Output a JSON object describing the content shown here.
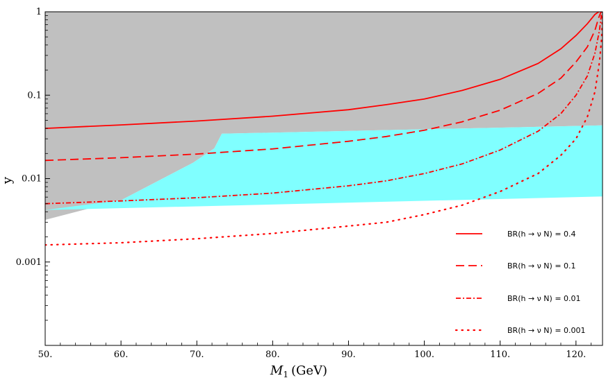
{
  "chart_data": {
    "type": "line",
    "title": "",
    "xlabel_symbol": "M",
    "xlabel_subscript": "1",
    "xlabel_unit": "(GeV)",
    "ylabel": "y",
    "xlim": [
      50,
      123.5
    ],
    "ylim": [
      0.0001,
      1
    ],
    "y_scale": "log",
    "grid": false,
    "legend_position": "bottom-right",
    "x_ticks": [
      {
        "value": 50,
        "label": "50."
      },
      {
        "value": 60,
        "label": "60."
      },
      {
        "value": 70,
        "label": "70."
      },
      {
        "value": 80,
        "label": "80."
      },
      {
        "value": 90,
        "label": "90."
      },
      {
        "value": 100,
        "label": "100."
      },
      {
        "value": 110,
        "label": "110."
      },
      {
        "value": 120,
        "label": "120."
      }
    ],
    "y_ticks": [
      {
        "value": 1,
        "label": "1"
      },
      {
        "value": 0.1,
        "label": "0.1"
      },
      {
        "value": 0.01,
        "label": "0.01"
      },
      {
        "value": 0.001,
        "label": "0.001"
      }
    ],
    "regions": [
      {
        "color": "#c0c0c0",
        "points": [
          [
            50,
            1
          ],
          [
            123.5,
            1
          ],
          [
            123.5,
            0.0434
          ],
          [
            73.3,
            0.0345
          ],
          [
            72.3,
            0.023
          ],
          [
            69.5,
            0.0155
          ],
          [
            60,
            0.0055
          ],
          [
            50,
            0.0032
          ]
        ]
      },
      {
        "color": "#80ffff",
        "points": [
          [
            73.3,
            0.0345
          ],
          [
            123.5,
            0.0434
          ],
          [
            123.5,
            0.0061
          ],
          [
            50,
            0.0042
          ],
          [
            60,
            0.0055
          ],
          [
            69.5,
            0.0155
          ],
          [
            72.3,
            0.023
          ]
        ]
      }
    ],
    "series": [
      {
        "name": "BR(h → ν N) = 0.4",
        "color": "#ff0000",
        "dash": "solid",
        "points": [
          [
            50,
            0.04
          ],
          [
            60,
            0.044
          ],
          [
            70,
            0.049
          ],
          [
            80,
            0.056
          ],
          [
            90,
            0.067
          ],
          [
            95,
            0.077
          ],
          [
            100,
            0.09
          ],
          [
            105,
            0.114
          ],
          [
            110,
            0.155
          ],
          [
            115,
            0.24
          ],
          [
            118,
            0.36
          ],
          [
            120,
            0.52
          ],
          [
            121.5,
            0.72
          ],
          [
            122.5,
            0.93
          ],
          [
            123,
            1
          ]
        ]
      },
      {
        "name": "BR(h → ν N) = 0.1",
        "color": "#ff0000",
        "dash": "dashed",
        "points": [
          [
            50,
            0.0165
          ],
          [
            60,
            0.0178
          ],
          [
            70,
            0.0197
          ],
          [
            80,
            0.0227
          ],
          [
            90,
            0.028
          ],
          [
            95,
            0.032
          ],
          [
            100,
            0.038
          ],
          [
            105,
            0.048
          ],
          [
            110,
            0.066
          ],
          [
            115,
            0.105
          ],
          [
            118,
            0.16
          ],
          [
            120,
            0.25
          ],
          [
            121.5,
            0.38
          ],
          [
            122.5,
            0.6
          ],
          [
            123,
            0.85
          ],
          [
            123.3,
            1
          ]
        ]
      },
      {
        "name": "BR(h → ν N) = 0.01",
        "color": "#ff0000",
        "dash": "dashdot",
        "points": [
          [
            50,
            0.005
          ],
          [
            60,
            0.0054
          ],
          [
            70,
            0.0059
          ],
          [
            80,
            0.0067
          ],
          [
            90,
            0.0082
          ],
          [
            95,
            0.0094
          ],
          [
            100,
            0.0115
          ],
          [
            105,
            0.015
          ],
          [
            110,
            0.022
          ],
          [
            115,
            0.037
          ],
          [
            118,
            0.06
          ],
          [
            120,
            0.1
          ],
          [
            121.5,
            0.17
          ],
          [
            122.5,
            0.32
          ],
          [
            123.1,
            0.6
          ],
          [
            123.4,
            1
          ]
        ]
      },
      {
        "name": "BR(h → ν N) = 0.001",
        "color": "#ff0000",
        "dash": "dotted",
        "points": [
          [
            50,
            0.0016
          ],
          [
            60,
            0.0017
          ],
          [
            70,
            0.0019
          ],
          [
            80,
            0.0022
          ],
          [
            90,
            0.0027
          ],
          [
            95,
            0.003
          ],
          [
            100,
            0.0037
          ],
          [
            105,
            0.0048
          ],
          [
            110,
            0.007
          ],
          [
            115,
            0.0115
          ],
          [
            118,
            0.019
          ],
          [
            120,
            0.03
          ],
          [
            121.5,
            0.055
          ],
          [
            122.5,
            0.11
          ],
          [
            123.1,
            0.25
          ],
          [
            123.4,
            0.5
          ],
          [
            123.5,
            1
          ]
        ]
      }
    ]
  }
}
